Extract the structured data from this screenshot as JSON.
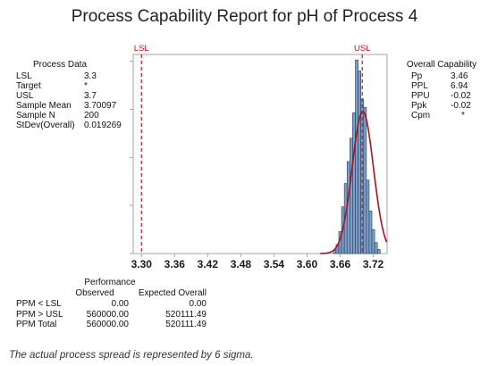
{
  "title": "Process Capability Report for pH of Process 4",
  "process_data": {
    "heading": "Process Data",
    "rows": [
      {
        "label": "LSL",
        "value": "3.3"
      },
      {
        "label": "Target",
        "value": "*"
      },
      {
        "label": "USL",
        "value": "3.7"
      },
      {
        "label": "Sample Mean",
        "value": "3.70097"
      },
      {
        "label": "Sample N",
        "value": "200"
      },
      {
        "label": "StDev(Overall)",
        "value": "0.019269"
      }
    ]
  },
  "overall_capability": {
    "heading": "Overall Capability",
    "rows": [
      {
        "label": "Pp",
        "value": "3.46"
      },
      {
        "label": "PPL",
        "value": "6.94"
      },
      {
        "label": "PPU",
        "value": "-0.02"
      },
      {
        "label": "Ppk",
        "value": "-0.02"
      },
      {
        "label": "Cpm",
        "value": "*"
      }
    ]
  },
  "performance": {
    "heading": "Performance",
    "col_observed": "Observed",
    "col_expected": "Expected Overall",
    "rows": [
      {
        "label": "PPM < LSL",
        "observed": "0.00",
        "expected": "0.00"
      },
      {
        "label": "PPM > USL",
        "observed": "560000.00",
        "expected": "520111.49"
      },
      {
        "label": "PPM Total",
        "observed": "560000.00",
        "expected": "520111.49"
      }
    ]
  },
  "footnote": "The actual process spread is represented by 6 sigma.",
  "chart_data": {
    "type": "bar",
    "title": "Process Capability Report for pH of Process 4",
    "xlim": [
      3.285,
      3.745
    ],
    "x_ticks": [
      "3.30",
      "3.36",
      "3.42",
      "3.48",
      "3.54",
      "3.60",
      "3.66",
      "3.72"
    ],
    "bin_width": 0.005,
    "bin_starts": [
      3.6475,
      3.6525,
      3.6575,
      3.6625,
      3.6675,
      3.6725,
      3.6775,
      3.6825,
      3.6875,
      3.6925,
      3.6975,
      3.7025,
      3.7075,
      3.7125,
      3.7175,
      3.7225,
      3.7275
    ],
    "density": [
      0.5,
      1.3,
      3.2,
      6.8,
      10.2,
      13.4,
      16.8,
      20.5,
      28.2,
      26.6,
      22.5,
      21.3,
      10.7,
      6.2,
      3.5,
      1.6,
      0.6
    ],
    "density_max": 29,
    "normal_fit": {
      "mean": 3.70097,
      "stdev": 0.019269
    },
    "lsl": {
      "label": "LSL",
      "value": 3.3
    },
    "usl": {
      "label": "USL",
      "value": 3.7
    },
    "grid": false,
    "colors": {
      "bar_fill": "#7e9ec6",
      "bar_stroke": "#1f3f66",
      "curve": "#a5161c",
      "spec_line": "#c0161c",
      "axes": "#a6a6a6"
    }
  }
}
